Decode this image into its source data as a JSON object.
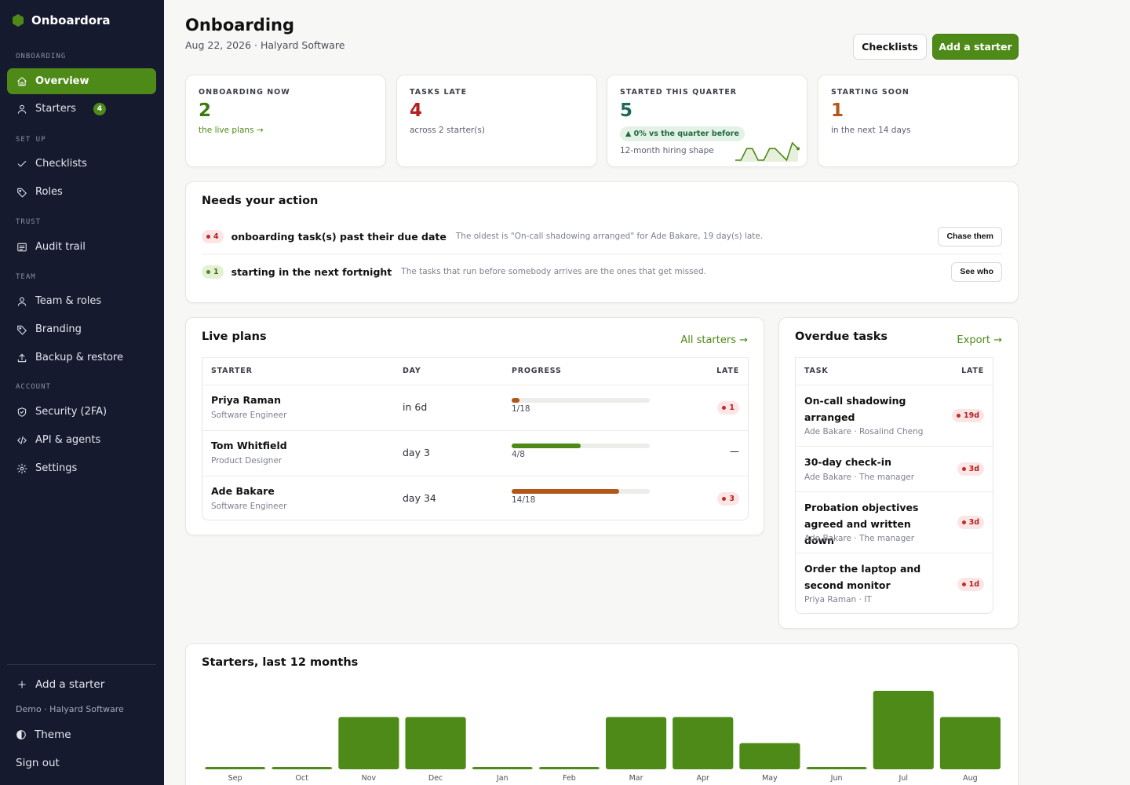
{
  "app": {
    "name": "Onboardora"
  },
  "sidebar": {
    "sections": {
      "onboarding": "ONBOARDING",
      "setup": "SET UP",
      "trust": "TRUST",
      "team": "TEAM",
      "account": "ACCOUNT"
    },
    "items": {
      "overview": "Overview",
      "starters": "Starters",
      "starters_badge": "4",
      "checklists": "Checklists",
      "roles": "Roles",
      "audit_trail": "Audit trail",
      "team_roles": "Team & roles",
      "branding": "Branding",
      "backup_restore": "Backup & restore",
      "security": "Security (2FA)",
      "api_agents": "API & agents",
      "settings": "Settings"
    },
    "bottom": {
      "add_starter": "Add a starter",
      "tenant": "Demo · Halyard Software",
      "theme": "Theme",
      "sign_out": "Sign out"
    }
  },
  "header": {
    "title": "Onboarding",
    "subtitle": "Aug 22, 2026 · Halyard Software",
    "checklists_button": "Checklists",
    "add_starter_button": "Add a starter"
  },
  "kpis": {
    "onboarding_now": {
      "label": "ONBOARDING NOW",
      "value": "2",
      "link": "the live plans →",
      "color": "#3d7a12"
    },
    "tasks_late": {
      "label": "TASKS LATE",
      "value": "4",
      "foot": "across 2 starter(s)",
      "color": "#b32020"
    },
    "started_quarter": {
      "label": "STARTED THIS QUARTER",
      "value": "5",
      "delta": "▲ 0% vs the quarter before",
      "foot": "12-month hiring shape",
      "color": "#1d6a5a",
      "spark": [
        0,
        0,
        2,
        2,
        0,
        0,
        2,
        2,
        1,
        0,
        3,
        2
      ]
    },
    "starting_soon": {
      "label": "STARTING SOON",
      "value": "1",
      "foot": "in the next 14 days",
      "color": "#b3561a"
    }
  },
  "needs_action": {
    "title": "Needs your action",
    "rows": [
      {
        "count": "4",
        "tone": "red",
        "headline": "onboarding task(s) past their due date",
        "detail": "The oldest is \"On-call shadowing arranged\" for Ade Bakare, 19 day(s) late.",
        "button": "Chase them"
      },
      {
        "count": "1",
        "tone": "green",
        "headline": "starting in the next fortnight",
        "detail": "The tasks that run before somebody arrives are the ones that get missed.",
        "button": "See who"
      }
    ]
  },
  "live_plans": {
    "title": "Live plans",
    "link": "All starters →",
    "headers": {
      "starter": "STARTER",
      "day": "DAY",
      "progress": "PROGRESS",
      "late": "LATE"
    },
    "rows": [
      {
        "name": "Priya Raman",
        "role": "Software Engineer",
        "day": "in 6d",
        "progress_label": "1/18",
        "progress": 0.0556,
        "bar_color": "#b3561a",
        "late": "1"
      },
      {
        "name": "Tom Whitfield",
        "role": "Product Designer",
        "day": "day 3",
        "progress_label": "4/8",
        "progress": 0.5,
        "bar_color": "#4e8a17",
        "late": "—"
      },
      {
        "name": "Ade Bakare",
        "role": "Software Engineer",
        "day": "day 34",
        "progress_label": "14/18",
        "progress": 0.7778,
        "bar_color": "#b3561a",
        "late": "3"
      }
    ]
  },
  "overdue": {
    "title": "Overdue tasks",
    "link": "Export →",
    "headers": {
      "task": "TASK",
      "late": "LATE"
    },
    "rows": [
      {
        "task": "On-call shadowing arranged",
        "meta": "Ade Bakare · Rosalind Cheng",
        "late": "19d"
      },
      {
        "task": "30-day check-in",
        "meta": "Ade Bakare · The manager",
        "late": "3d"
      },
      {
        "task": "Probation objectives agreed and written down",
        "meta": "Ade Bakare · The manager",
        "late": "3d"
      },
      {
        "task": "Order the laptop and second monitor",
        "meta": "Priya Raman · IT",
        "late": "1d"
      }
    ]
  },
  "starters_chart": {
    "title": "Starters, last 12 months"
  },
  "chart_data": {
    "type": "bar",
    "title": "Starters, last 12 months",
    "categories": [
      "Sep",
      "Oct",
      "Nov",
      "Dec",
      "Jan",
      "Feb",
      "Mar",
      "Apr",
      "May",
      "Jun",
      "Jul",
      "Aug"
    ],
    "values": [
      0,
      0,
      2,
      2,
      0,
      0,
      2,
      2,
      1,
      0,
      3,
      2
    ],
    "ylim": [
      0,
      3
    ],
    "color": "#4e8a17",
    "grid": false
  }
}
